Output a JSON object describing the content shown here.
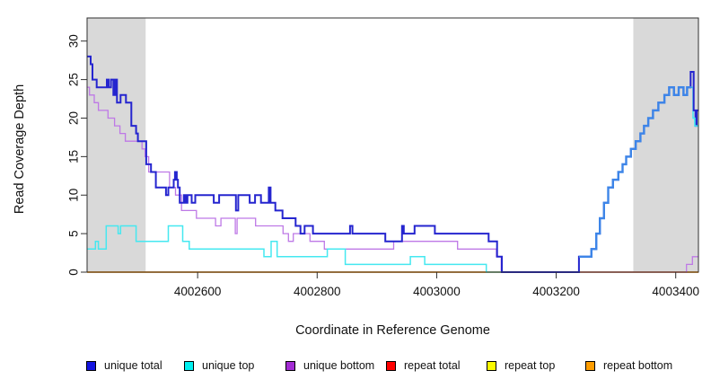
{
  "figure": {
    "x_title": "Coordinate in Reference Genome",
    "y_title": "Read Coverage Depth",
    "background": "#ffffff",
    "shaded_region_color": "#d9d9d9",
    "box_color": "#2f2f2f"
  },
  "legend": {
    "items": [
      {
        "label": "unique total",
        "color": "#1414e0"
      },
      {
        "label": "unique top",
        "color": "#00f0f0"
      },
      {
        "label": "unique bottom",
        "color": "#a32cd4"
      },
      {
        "label": "repeat total",
        "color": "#ff0000"
      },
      {
        "label": "repeat top",
        "color": "#fafa00"
      },
      {
        "label": "repeat bottom",
        "color": "#ff9d00"
      }
    ]
  },
  "chart_data": {
    "type": "line",
    "subtype": "step-after",
    "title": "",
    "xlabel": "Coordinate in Reference Genome",
    "ylabel": "Read Coverage Depth",
    "xlim": [
      4002415,
      4003438
    ],
    "ylim": [
      0,
      33
    ],
    "x_ticks": [
      4002600,
      4002800,
      4003000,
      4003200,
      4003400
    ],
    "y_ticks": [
      0,
      5,
      10,
      15,
      20,
      25,
      30
    ],
    "grid": false,
    "legend_position": "bottom",
    "shaded_regions": [
      {
        "x0": 4002415,
        "x1": 4002513,
        "note": "left repeat region"
      },
      {
        "x0": 4003329,
        "x1": 4003438,
        "note": "right repeat region"
      }
    ],
    "series": [
      {
        "name": "unique total",
        "color": "#2525cf",
        "points": [
          [
            4002415,
            28
          ],
          [
            4002421,
            27
          ],
          [
            4002424,
            25
          ],
          [
            4002431,
            24
          ],
          [
            4002448,
            25
          ],
          [
            4002451,
            24
          ],
          [
            4002455,
            25
          ],
          [
            4002459,
            23
          ],
          [
            4002462,
            25
          ],
          [
            4002465,
            22
          ],
          [
            4002471,
            23
          ],
          [
            4002480,
            22
          ],
          [
            4002489,
            19
          ],
          [
            4002497,
            18
          ],
          [
            4002500,
            17
          ],
          [
            4002514,
            14
          ],
          [
            4002522,
            13
          ],
          [
            4002530,
            11
          ],
          [
            4002547,
            10
          ],
          [
            4002551,
            11
          ],
          [
            4002560,
            12
          ],
          [
            4002562,
            13
          ],
          [
            4002565,
            12
          ],
          [
            4002567,
            11
          ],
          [
            4002570,
            9
          ],
          [
            4002577,
            10
          ],
          [
            4002580,
            9
          ],
          [
            4002583,
            10
          ],
          [
            4002590,
            9
          ],
          [
            4002596,
            10
          ],
          [
            4002627,
            9
          ],
          [
            4002636,
            10
          ],
          [
            4002664,
            8
          ],
          [
            4002668,
            10
          ],
          [
            4002687,
            9
          ],
          [
            4002696,
            10
          ],
          [
            4002706,
            9
          ],
          [
            4002719,
            11
          ],
          [
            4002722,
            9
          ],
          [
            4002730,
            8
          ],
          [
            4002742,
            7
          ],
          [
            4002764,
            6
          ],
          [
            4002772,
            5
          ],
          [
            4002779,
            6
          ],
          [
            4002793,
            5
          ],
          [
            4002855,
            6
          ],
          [
            4002859,
            5
          ],
          [
            4002914,
            4
          ],
          [
            4002942,
            6
          ],
          [
            4002945,
            5
          ],
          [
            4002963,
            6
          ],
          [
            4002997,
            5
          ],
          [
            4003087,
            4
          ],
          [
            4003101,
            2
          ],
          [
            4003109,
            0
          ],
          [
            4003238,
            2
          ],
          [
            4003259,
            3
          ],
          [
            4003267,
            5
          ],
          [
            4003273,
            7
          ],
          [
            4003280,
            9
          ],
          [
            4003287,
            11
          ],
          [
            4003295,
            12
          ],
          [
            4003304,
            13
          ],
          [
            4003311,
            14
          ],
          [
            4003317,
            15
          ],
          [
            4003325,
            16
          ],
          [
            4003333,
            17
          ],
          [
            4003341,
            18
          ],
          [
            4003347,
            19
          ],
          [
            4003354,
            20
          ],
          [
            4003362,
            21
          ],
          [
            4003371,
            22
          ],
          [
            4003381,
            23
          ],
          [
            4003389,
            24
          ],
          [
            4003397,
            23
          ],
          [
            4003405,
            24
          ],
          [
            4003413,
            23
          ],
          [
            4003419,
            24
          ],
          [
            4003425,
            26
          ],
          [
            4003430,
            21
          ],
          [
            4003433,
            19
          ],
          [
            4003435,
            21
          ],
          [
            4003438,
            21
          ]
        ]
      },
      {
        "name": "unique top",
        "color": "#45e8f0",
        "points": [
          [
            4002415,
            3
          ],
          [
            4002429,
            4
          ],
          [
            4002434,
            3
          ],
          [
            4002447,
            6
          ],
          [
            4002467,
            5
          ],
          [
            4002471,
            6
          ],
          [
            4002497,
            4
          ],
          [
            4002551,
            6
          ],
          [
            4002575,
            4
          ],
          [
            4002586,
            3
          ],
          [
            4002711,
            2
          ],
          [
            4002723,
            4
          ],
          [
            4002733,
            2
          ],
          [
            4002817,
            3
          ],
          [
            4002847,
            1
          ],
          [
            4002956,
            2
          ],
          [
            4002980,
            1
          ],
          [
            4003083,
            0
          ],
          [
            4003238,
            2
          ],
          [
            4003259,
            3
          ],
          [
            4003267,
            5
          ],
          [
            4003273,
            7
          ],
          [
            4003280,
            9
          ],
          [
            4003287,
            11
          ],
          [
            4003295,
            12
          ],
          [
            4003304,
            13
          ],
          [
            4003311,
            14
          ],
          [
            4003317,
            15
          ],
          [
            4003325,
            16
          ],
          [
            4003333,
            17
          ],
          [
            4003341,
            18
          ],
          [
            4003347,
            19
          ],
          [
            4003354,
            20
          ],
          [
            4003362,
            21
          ],
          [
            4003371,
            22
          ],
          [
            4003381,
            23
          ],
          [
            4003389,
            24
          ],
          [
            4003397,
            23
          ],
          [
            4003405,
            24
          ],
          [
            4003413,
            23
          ],
          [
            4003419,
            24
          ],
          [
            4003429,
            20
          ],
          [
            4003432,
            19
          ],
          [
            4003438,
            19
          ]
        ]
      },
      {
        "name": "unique bottom",
        "color": "#be79e6",
        "points": [
          [
            4002415,
            24
          ],
          [
            4002419,
            23
          ],
          [
            4002427,
            22
          ],
          [
            4002434,
            21
          ],
          [
            4002450,
            20
          ],
          [
            4002461,
            19
          ],
          [
            4002470,
            18
          ],
          [
            4002479,
            17
          ],
          [
            4002507,
            16
          ],
          [
            4002512,
            15
          ],
          [
            4002518,
            13
          ],
          [
            4002553,
            11
          ],
          [
            4002563,
            10
          ],
          [
            4002573,
            8
          ],
          [
            4002598,
            7
          ],
          [
            4002630,
            6
          ],
          [
            4002639,
            7
          ],
          [
            4002663,
            5
          ],
          [
            4002666,
            7
          ],
          [
            4002697,
            6
          ],
          [
            4002743,
            5
          ],
          [
            4002752,
            4
          ],
          [
            4002760,
            5
          ],
          [
            4002788,
            4
          ],
          [
            4002800,
            4
          ],
          [
            4002812,
            3
          ],
          [
            4002928,
            4
          ],
          [
            4003035,
            3
          ],
          [
            4003100,
            2
          ],
          [
            4003108,
            0
          ],
          [
            4003418,
            1
          ],
          [
            4003428,
            2
          ],
          [
            4003438,
            2
          ]
        ]
      },
      {
        "name": "repeat total",
        "color": "#e03030",
        "points": [
          [
            4002415,
            0
          ],
          [
            4003438,
            0
          ]
        ]
      },
      {
        "name": "repeat top",
        "color": "#f5f500",
        "points": [
          [
            4002415,
            0
          ],
          [
            4003438,
            0
          ]
        ]
      },
      {
        "name": "repeat bottom",
        "color": "#ff9400",
        "points": [
          [
            4002415,
            0
          ],
          [
            4003438,
            0
          ]
        ]
      }
    ],
    "render_lines": [
      {
        "name": "repeat-top-line",
        "ref": "repeat top",
        "width": 1.2
      },
      {
        "name": "repeat-total-line",
        "ref": "repeat total",
        "width": 1.2
      },
      {
        "name": "repeat-bottom-line",
        "ref": "repeat bottom",
        "width": 1.5
      },
      {
        "name": "zero-overlap-unique-line",
        "color": "#6e62e6",
        "width": 1.4,
        "points": [
          [
            4003110,
            0
          ],
          [
            4003240,
            0
          ]
        ]
      },
      {
        "name": "zero-overlap-repeat-line",
        "color": "#d65f7d",
        "width": 1.3,
        "points": [
          [
            4003240,
            0
          ],
          [
            4003419,
            0
          ]
        ]
      },
      {
        "name": "unique-bottom-line",
        "ref": "unique bottom",
        "width": 1.3
      },
      {
        "name": "unique-top-line",
        "ref": "unique top",
        "width": 1.5
      },
      {
        "name": "unique-total-line",
        "ref": "unique total",
        "width": 2.0
      },
      {
        "name": "overlap-rise-line",
        "color": "#3d85e8",
        "width": 2.4,
        "points": [
          [
            4003238,
            2
          ],
          [
            4003259,
            3
          ],
          [
            4003267,
            5
          ],
          [
            4003273,
            7
          ],
          [
            4003280,
            9
          ],
          [
            4003287,
            11
          ],
          [
            4003295,
            12
          ],
          [
            4003304,
            13
          ],
          [
            4003311,
            14
          ],
          [
            4003317,
            15
          ],
          [
            4003325,
            16
          ],
          [
            4003333,
            17
          ],
          [
            4003341,
            18
          ],
          [
            4003347,
            19
          ],
          [
            4003354,
            20
          ],
          [
            4003362,
            21
          ],
          [
            4003371,
            22
          ],
          [
            4003381,
            23
          ],
          [
            4003389,
            24
          ],
          [
            4003397,
            23
          ],
          [
            4003405,
            24
          ],
          [
            4003413,
            23
          ],
          [
            4003419,
            24
          ],
          [
            4003426,
            24
          ]
        ]
      },
      {
        "name": "unique-top-tail-line",
        "color": "#45e8f0",
        "width": 1.5,
        "points": [
          [
            4003429,
            20
          ],
          [
            4003432,
            19
          ],
          [
            4003438,
            19
          ]
        ]
      }
    ]
  }
}
